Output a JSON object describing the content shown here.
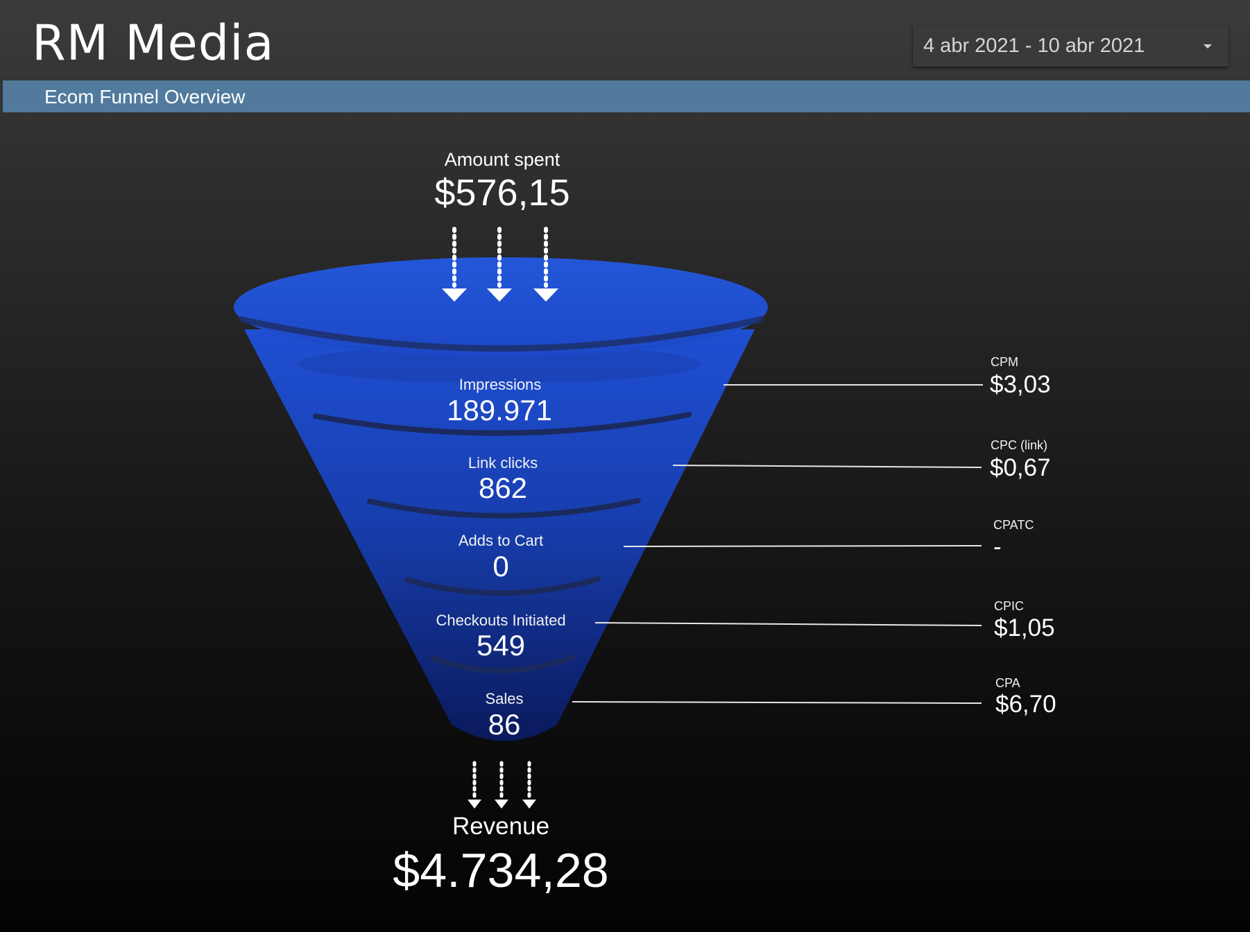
{
  "header": {
    "app_title": "RM Media",
    "date_range": "4 abr 2021 - 10 abr 2021"
  },
  "section": {
    "title": "Ecom Funnel Overview"
  },
  "spend": {
    "label": "Amount spent",
    "value": "$576,15"
  },
  "funnel": {
    "stages": [
      {
        "label": "Impressions",
        "value": "189.971"
      },
      {
        "label": "Link clicks",
        "value": "862"
      },
      {
        "label": "Adds to Cart",
        "value": "0"
      },
      {
        "label": "Checkouts Initiated",
        "value": "549"
      },
      {
        "label": "Sales",
        "value": "86"
      }
    ]
  },
  "metrics": [
    {
      "label": "CPM",
      "value": "$3,03"
    },
    {
      "label": "CPC (link)",
      "value": "$0,67"
    },
    {
      "label": "CPATC",
      "value": "-"
    },
    {
      "label": "CPIC",
      "value": "$1,05"
    },
    {
      "label": "CPA",
      "value": "$6,70"
    }
  ],
  "revenue": {
    "label": "Revenue",
    "value": "$4.734,28"
  },
  "colors": {
    "background_top": "#3b3b3b",
    "background_bottom": "#030303",
    "section_bar": "#517a9d",
    "funnel_top": "#1f4fd3",
    "funnel_bottom": "#0a1a5c",
    "text": "#ffffff"
  }
}
